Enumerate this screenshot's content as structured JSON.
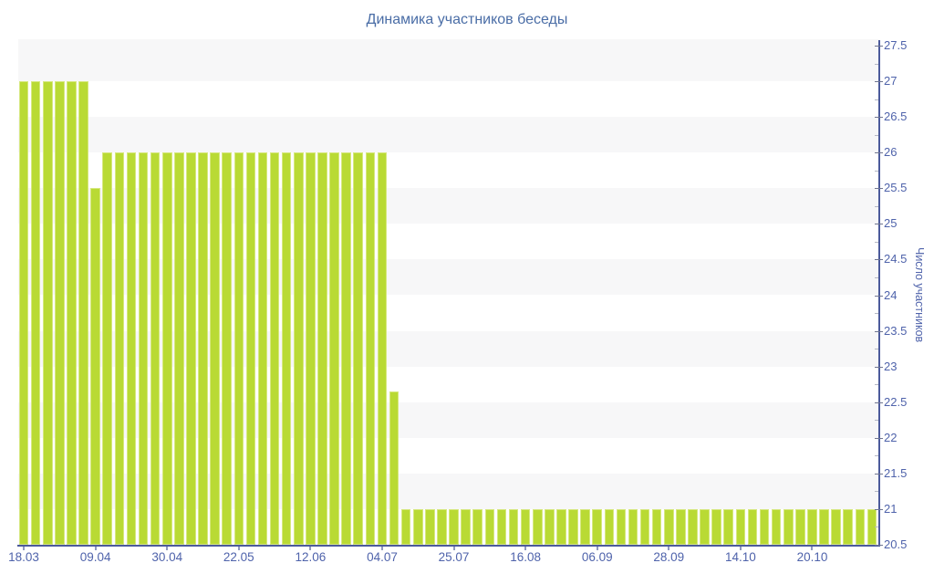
{
  "title": "Динамика участников беседы",
  "y_axis": {
    "title": "Число участников",
    "tick_labels": [
      "27.5",
      "27",
      "26.5",
      "26",
      "25.5",
      "25",
      "24.5",
      "24",
      "23.5",
      "23",
      "22.5",
      "22",
      "21.5",
      "21",
      "20.5"
    ]
  },
  "x_axis": {
    "tick_labels": [
      "18.03",
      "09.04",
      "30.04",
      "22.05",
      "12.06",
      "04.07",
      "25.07",
      "16.08",
      "06.09",
      "28.09",
      "14.10",
      "20.10"
    ]
  },
  "colors": {
    "bar_fill": "#b9da34",
    "bar_edge": "#d6e87f",
    "axis_line": "#4b5a9b",
    "tick_label_text": "#4f63ab",
    "title_text": "#4a6da6",
    "band_gray": "#f7f7f8"
  },
  "chart_data": {
    "type": "bar",
    "title": "Динамика участников беседы",
    "xlabel": "",
    "ylabel": "Число участников",
    "ylim": [
      20.5,
      27.5
    ],
    "y_major_step": 0.5,
    "y_minor_step": 0.25,
    "grid": "alternating 0.5-unit horizontal bands, gray/white, topmost band gray",
    "legend": false,
    "x_tick_labels": [
      "18.03",
      "09.04",
      "30.04",
      "22.05",
      "12.06",
      "04.07",
      "25.07",
      "16.08",
      "06.09",
      "28.09",
      "14.10",
      "20.10"
    ],
    "x_tick_every_n_bars": 6,
    "bar_count": 72,
    "values": [
      27,
      27,
      27,
      27,
      27,
      27,
      25.5,
      26,
      26,
      26,
      26,
      26,
      26,
      26,
      26,
      26,
      26,
      26,
      26,
      26,
      26,
      26,
      26,
      26,
      26,
      26,
      26,
      26,
      26,
      26,
      26,
      22.65,
      21,
      21,
      21,
      21,
      21,
      21,
      21,
      21,
      21,
      21,
      21,
      21,
      21,
      21,
      21,
      21,
      21,
      21,
      21,
      21,
      21,
      21,
      21,
      21,
      21,
      21,
      21,
      21,
      21,
      21,
      21,
      21,
      21,
      21,
      21,
      21,
      21,
      21,
      21,
      21
    ]
  }
}
